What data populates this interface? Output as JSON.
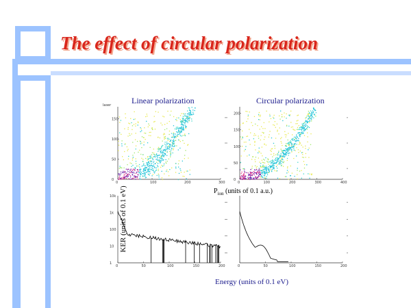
{
  "slide": {
    "title": "The effect of circular polarization"
  },
  "figure": {
    "col_titles": [
      "Linear polarization",
      "Circular polarization"
    ],
    "y_label": "KER (units of 0.1  eV)",
    "mid_x_label_main": "P",
    "mid_x_label_sub": "ion",
    "mid_x_label_rest": "(units of 0.1 a.u.)",
    "bottom_x_label": "Energy (units of 0.1  eV)",
    "laser_label": "laser"
  },
  "chart_data": [
    {
      "type": "scatter",
      "title": "Linear polarization",
      "xlabel": "Pion (units of 0.1 a.u.)",
      "ylabel": "KER (units of 0.1 eV)",
      "xlim": [
        0,
        300
      ],
      "ylim": [
        0,
        180
      ],
      "x_ticks": [
        0,
        100,
        200,
        300
      ],
      "y_ticks": [
        0,
        50,
        100,
        150
      ]
    },
    {
      "type": "scatter",
      "title": "Circular polarization",
      "xlabel": "Pion (units of 0.1 a.u.)",
      "ylabel": "KER (units of 0.1 eV)",
      "xlim": [
        0,
        400
      ],
      "ylim": [
        0,
        220
      ],
      "x_ticks": [
        0,
        100,
        200,
        300,
        400
      ],
      "y_ticks": [
        0,
        50,
        100,
        150,
        200
      ]
    },
    {
      "type": "line",
      "xlabel": "Energy (units of 0.1 eV)",
      "xlim": [
        0,
        200
      ],
      "x_ticks": [
        0,
        50,
        100,
        150,
        200
      ],
      "y_scale": "log",
      "y_ticks": [
        1,
        10,
        100,
        1000,
        10000
      ]
    },
    {
      "type": "line",
      "xlabel": "Energy (units of 0.1 eV)",
      "xlim": [
        0,
        200
      ],
      "x_ticks": [
        0,
        50,
        100,
        150,
        200
      ],
      "y_scale": "log"
    }
  ]
}
